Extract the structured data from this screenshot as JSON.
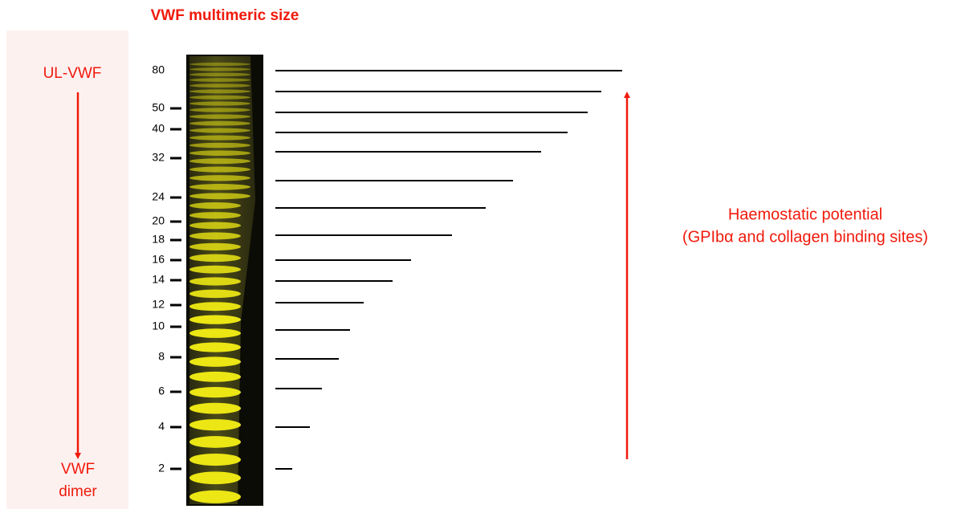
{
  "title": "VWF multimeric size",
  "left_labels": {
    "top": "UL-VWF",
    "bottom": [
      "VWF",
      "dimer"
    ]
  },
  "gel_markers": [
    "80",
    "50",
    "40",
    "32",
    "24",
    "20",
    "18",
    "16",
    "14",
    "12",
    "10",
    "8",
    "6",
    "4",
    "2"
  ],
  "right_text": [
    "Haemostatic potential",
    "(GPIbα and collagen binding sites)"
  ]
}
